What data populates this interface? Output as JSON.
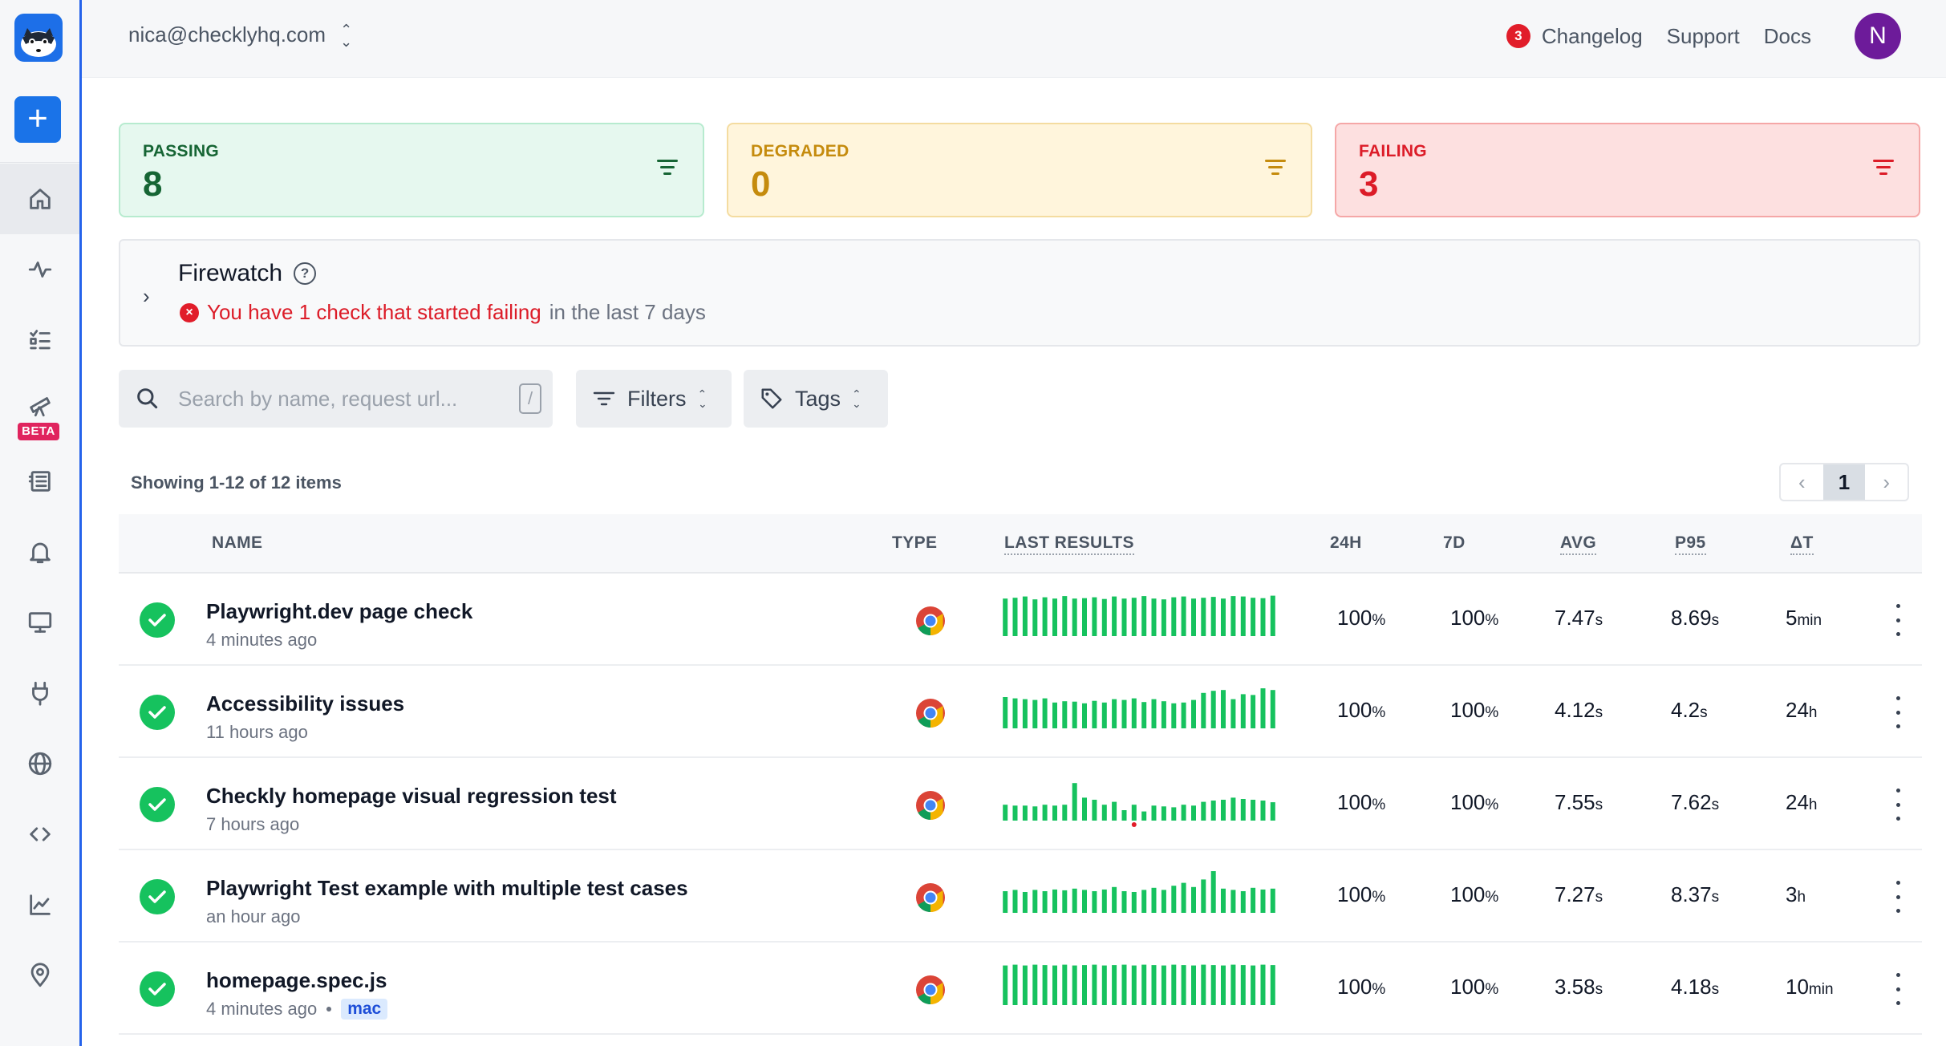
{
  "header": {
    "account": "nica@checklyhq.com",
    "changelog_count": "3",
    "changelog": "Changelog",
    "support": "Support",
    "docs": "Docs",
    "avatar_initial": "N"
  },
  "sidebar": {
    "new_label": "+",
    "beta_label": "BETA",
    "items": [
      "home-icon",
      "activity-icon",
      "checks-icon",
      "telescope-icon",
      "list-icon",
      "bell-icon",
      "monitor-icon",
      "plug-icon",
      "globe-icon",
      "code-icon",
      "chart-icon",
      "location-icon"
    ]
  },
  "status": {
    "passing": {
      "label": "PASSING",
      "count": "8",
      "color": "#166534"
    },
    "degraded": {
      "label": "DEGRADED",
      "count": "0",
      "color": "#c58b0d"
    },
    "failing": {
      "label": "FAILING",
      "count": "3",
      "color": "#dc1c28"
    }
  },
  "firewatch": {
    "title": "Firewatch",
    "help": "?",
    "alert": "You have 1 check that started failing",
    "suffix": "in the last 7 days"
  },
  "search": {
    "placeholder": "Search by name, request url...",
    "shortcut": "/"
  },
  "filters_label": "Filters",
  "tags_label": "Tags",
  "showing": "Showing 1-12 of 12 items",
  "pagination": {
    "prev": "‹",
    "current": "1",
    "next": "›"
  },
  "table": {
    "headers": {
      "name": "NAME",
      "type": "TYPE",
      "last_results": "LAST RESULTS",
      "h24": "24H",
      "d7": "7D",
      "avg": "AVG",
      "p95": "P95",
      "dt": "ΔT"
    },
    "rows": [
      {
        "name": "Playwright.dev page check",
        "time": "4 minutes ago",
        "tag": "",
        "h24": "100",
        "d7": "100",
        "avg": "7.47",
        "p95": "8.69",
        "dt": "5",
        "dt_unit": "min",
        "bars": [
          0.9,
          0.92,
          0.95,
          0.88,
          0.93,
          0.9,
          0.96,
          0.9,
          0.91,
          0.93,
          0.89,
          0.95,
          0.9,
          0.92,
          0.96,
          0.9,
          0.88,
          0.93,
          0.95,
          0.9,
          0.92,
          0.94,
          0.9,
          0.96,
          0.95,
          0.92,
          0.91,
          0.97
        ],
        "fails": []
      },
      {
        "name": "Accessibility issues",
        "time": "11 hours ago",
        "tag": "",
        "h24": "100",
        "d7": "100",
        "avg": "4.12",
        "p95": "4.2",
        "dt": "24",
        "dt_unit": "h",
        "bars": [
          0.75,
          0.72,
          0.7,
          0.68,
          0.72,
          0.62,
          0.65,
          0.64,
          0.6,
          0.66,
          0.62,
          0.7,
          0.68,
          0.72,
          0.63,
          0.7,
          0.65,
          0.6,
          0.62,
          0.68,
          0.85,
          0.9,
          0.92,
          0.7,
          0.82,
          0.8,
          0.96,
          0.92
        ],
        "fails": []
      },
      {
        "name": "Checkly homepage visual regression test",
        "time": "7 hours ago",
        "tag": "",
        "h24": "100",
        "d7": "100",
        "avg": "7.55",
        "p95": "7.62",
        "dt": "24",
        "dt_unit": "h",
        "bars": [
          0.38,
          0.36,
          0.36,
          0.34,
          0.38,
          0.36,
          0.38,
          0.9,
          0.55,
          0.5,
          0.38,
          0.45,
          0.25,
          0.38,
          0.22,
          0.36,
          0.34,
          0.32,
          0.38,
          0.36,
          0.45,
          0.48,
          0.5,
          0.55,
          0.52,
          0.5,
          0.48,
          0.44
        ],
        "fails": [
          13
        ]
      },
      {
        "name": "Playwright Test example with multiple test cases",
        "time": "an hour ago",
        "tag": "",
        "h24": "100",
        "d7": "100",
        "avg": "7.27",
        "p95": "8.37",
        "dt": "3",
        "dt_unit": "h",
        "bars": [
          0.52,
          0.55,
          0.5,
          0.55,
          0.52,
          0.56,
          0.54,
          0.58,
          0.55,
          0.52,
          0.56,
          0.62,
          0.52,
          0.5,
          0.55,
          0.6,
          0.55,
          0.65,
          0.72,
          0.62,
          0.8,
          1.0,
          0.58,
          0.55,
          0.52,
          0.6,
          0.56,
          0.58
        ],
        "fails": []
      },
      {
        "name": "homepage.spec.js",
        "time": "4 minutes ago",
        "tag": "mac",
        "h24": "100",
        "d7": "100",
        "avg": "3.58",
        "p95": "4.18",
        "dt": "10",
        "dt_unit": "min",
        "bars": [
          0.95,
          0.97,
          0.95,
          0.97,
          0.96,
          0.95,
          0.97,
          0.95,
          0.96,
          0.97,
          0.95,
          0.96,
          0.97,
          0.95,
          0.97,
          0.96,
          0.95,
          0.97,
          0.96,
          0.95,
          0.97,
          0.96,
          0.95,
          0.97,
          0.96,
          0.95,
          0.97,
          0.96
        ],
        "fails": []
      }
    ]
  },
  "colors": {
    "accent": "#1a73e8",
    "success": "#16c25e",
    "fail": "#e11d2a"
  }
}
